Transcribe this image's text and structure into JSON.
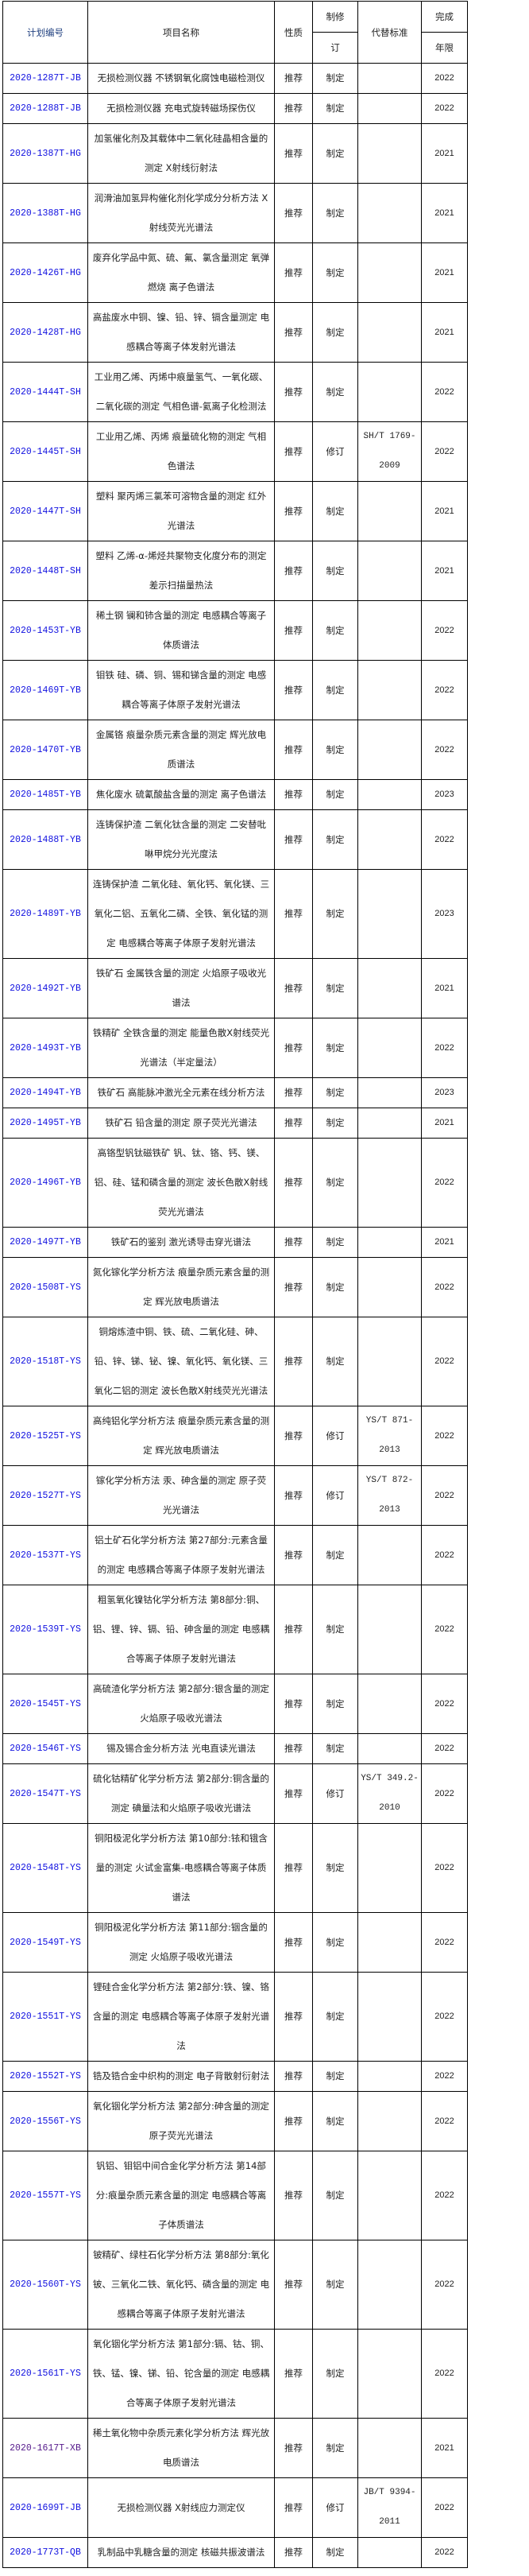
{
  "header": {
    "code": "计划编号",
    "name": "项目名称",
    "nature": "性质",
    "type_top": "制修",
    "type_bottom": "订",
    "replaces": "代替标准",
    "year_top": "完成",
    "year_bottom": "年限"
  },
  "colors": {
    "link": "#1010e0",
    "visited_link": "#551a8b",
    "border": "#000000"
  },
  "rows": [
    {
      "code": "2020-1287T-JB",
      "name": [
        "无损检测仪器 不锈钢氧化腐蚀电磁检测仪"
      ],
      "nature": "推荐",
      "type": "制定",
      "replaces": [],
      "year": "2022"
    },
    {
      "code": "2020-1288T-JB",
      "name": [
        "无损检测仪器 充电式旋转磁场探伤仪"
      ],
      "nature": "推荐",
      "type": "制定",
      "replaces": [],
      "year": "2022"
    },
    {
      "code": "2020-1387T-HG",
      "name": [
        "加氢催化剂及其载体中二氧化硅晶相含量的",
        "测定 X射线衍射法"
      ],
      "nature": "推荐",
      "type": "制定",
      "replaces": [],
      "year": "2021"
    },
    {
      "code": "2020-1388T-HG",
      "name": [
        "润滑油加氢异构催化剂化学成分分析方法 X",
        "射线荧光光谱法"
      ],
      "nature": "推荐",
      "type": "制定",
      "replaces": [],
      "year": "2021"
    },
    {
      "code": "2020-1426T-HG",
      "name": [
        "废弃化学品中氮、硫、氟、氯含量测定 氧弹",
        "燃烧 离子色谱法"
      ],
      "nature": "推荐",
      "type": "制定",
      "replaces": [],
      "year": "2021"
    },
    {
      "code": "2020-1428T-HG",
      "name": [
        "高盐废水中铜、镍、铅、锌、镉含量测定 电",
        "感耦合等离子体发射光谱法"
      ],
      "nature": "推荐",
      "type": "制定",
      "replaces": [],
      "year": "2021"
    },
    {
      "code": "2020-1444T-SH",
      "name": [
        "工业用乙烯、丙烯中痕量氢气、一氧化碳、",
        "二氧化碳的测定 气相色谱-氦离子化检测法"
      ],
      "nature": "推荐",
      "type": "制定",
      "replaces": [],
      "year": "2022"
    },
    {
      "code": "2020-1445T-SH",
      "name": [
        "工业用乙烯、丙烯 痕量硫化物的测定 气相",
        "色谱法"
      ],
      "nature": "推荐",
      "type": "修订",
      "replaces": [
        "SH/T 1769-",
        "2009"
      ],
      "year": "2022"
    },
    {
      "code": "2020-1447T-SH",
      "name": [
        "塑料 聚丙烯三氯苯可溶物含量的测定 红外",
        "光谱法"
      ],
      "nature": "推荐",
      "type": "制定",
      "replaces": [],
      "year": "2021"
    },
    {
      "code": "2020-1448T-SH",
      "name": [
        "塑料 乙烯-α-烯烃共聚物支化度分布的测定",
        "差示扫描量热法"
      ],
      "nature": "推荐",
      "type": "制定",
      "replaces": [],
      "year": "2021"
    },
    {
      "code": "2020-1453T-YB",
      "name": [
        "稀土钢 镧和铈含量的测定 电感耦合等离子",
        "体质谱法"
      ],
      "nature": "推荐",
      "type": "制定",
      "replaces": [],
      "year": "2022"
    },
    {
      "code": "2020-1469T-YB",
      "name": [
        "钼铁 硅、磷、铜、锡和锑含量的测定 电感",
        "耦合等离子体原子发射光谱法"
      ],
      "nature": "推荐",
      "type": "制定",
      "replaces": [],
      "year": "2022"
    },
    {
      "code": "2020-1470T-YB",
      "name": [
        "金属铬 痕量杂质元素含量的测定 辉光放电",
        "质谱法"
      ],
      "nature": "推荐",
      "type": "制定",
      "replaces": [],
      "year": "2022"
    },
    {
      "code": "2020-1485T-YB",
      "name": [
        "焦化废水 硫氰酸盐含量的测定 离子色谱法"
      ],
      "nature": "推荐",
      "type": "制定",
      "replaces": [],
      "year": "2023"
    },
    {
      "code": "2020-1488T-YB",
      "name": [
        "连铸保护渣 二氧化钛含量的测定 二安替吡",
        "啉甲烷分光光度法"
      ],
      "nature": "推荐",
      "type": "制定",
      "replaces": [],
      "year": "2022"
    },
    {
      "code": "2020-1489T-YB",
      "name": [
        "连铸保护渣 二氧化硅、氧化钙、氧化镁、三",
        "氧化二铝、五氧化二磷、全铁、氧化锰的测",
        "定 电感耦合等离子体原子发射光谱法"
      ],
      "nature": "推荐",
      "type": "制定",
      "replaces": [],
      "year": "2023"
    },
    {
      "code": "2020-1492T-YB",
      "name": [
        "铁矿石 金属铁含量的测定 火焰原子吸收光",
        "谱法"
      ],
      "nature": "推荐",
      "type": "制定",
      "replaces": [],
      "year": "2021"
    },
    {
      "code": "2020-1493T-YB",
      "name": [
        "铁精矿 全铁含量的测定 能量色散X射线荧光",
        "光谱法（半定量法）"
      ],
      "nature": "推荐",
      "type": "制定",
      "replaces": [],
      "year": "2022"
    },
    {
      "code": "2020-1494T-YB",
      "name": [
        "铁矿石 高能脉冲激光全元素在线分析方法"
      ],
      "nature": "推荐",
      "type": "制定",
      "replaces": [],
      "year": "2023"
    },
    {
      "code": "2020-1495T-YB",
      "name": [
        "铁矿石 铅含量的测定 原子荧光光谱法"
      ],
      "nature": "推荐",
      "type": "制定",
      "replaces": [],
      "year": "2021"
    },
    {
      "code": "2020-1496T-YB",
      "name": [
        "高铬型钒钛磁铁矿 钒、钛、铬、钙、镁、",
        "铝、硅、锰和磷含量的测定 波长色散X射线",
        "荧光光谱法"
      ],
      "nature": "推荐",
      "type": "制定",
      "replaces": [],
      "year": "2022"
    },
    {
      "code": "2020-1497T-YB",
      "name": [
        "铁矿石的鉴别 激光诱导击穿光谱法"
      ],
      "nature": "推荐",
      "type": "制定",
      "replaces": [],
      "year": "2021"
    },
    {
      "code": "2020-1508T-YS",
      "name": [
        "氮化镓化学分析方法 痕量杂质元素含量的测",
        "定 辉光放电质谱法"
      ],
      "nature": "推荐",
      "type": "制定",
      "replaces": [],
      "year": "2022"
    },
    {
      "code": "2020-1518T-YS",
      "name": [
        "铜熔炼渣中铜、铁、硫、二氧化硅、砷、",
        "铅、锌、锑、铋、镍、氧化钙、氧化镁、三",
        "氧化二铝的测定 波长色散X射线荧光光谱法"
      ],
      "nature": "推荐",
      "type": "制定",
      "replaces": [],
      "year": "2022"
    },
    {
      "code": "2020-1525T-YS",
      "name": [
        "高纯铝化学分析方法 痕量杂质元素含量的测",
        "定 辉光放电质谱法"
      ],
      "nature": "推荐",
      "type": "修订",
      "replaces": [
        "YS/T 871-",
        "2013"
      ],
      "year": "2022"
    },
    {
      "code": "2020-1527T-YS",
      "name": [
        "镓化学分析方法 汞、砷含量的测定 原子荧",
        "光光谱法"
      ],
      "nature": "推荐",
      "type": "修订",
      "replaces": [
        "YS/T 872-",
        "2013"
      ],
      "year": "2022"
    },
    {
      "code": "2020-1537T-YS",
      "name": [
        "铝土矿石化学分析方法 第27部分:元素含量",
        "的测定 电感耦合等离子体原子发射光谱法"
      ],
      "nature": "推荐",
      "type": "制定",
      "replaces": [],
      "year": "2022"
    },
    {
      "code": "2020-1539T-YS",
      "name": [
        "粗氢氧化镍钴化学分析方法 第8部分:铜、",
        "铝、锂、锌、镉、铅、砷含量的测定 电感耦",
        "合等离子体原子发射光谱法"
      ],
      "nature": "推荐",
      "type": "制定",
      "replaces": [],
      "year": "2022"
    },
    {
      "code": "2020-1545T-YS",
      "name": [
        "高硫渣化学分析方法 第2部分:银含量的测定",
        "火焰原子吸收光谱法"
      ],
      "nature": "推荐",
      "type": "制定",
      "replaces": [],
      "year": "2022"
    },
    {
      "code": "2020-1546T-YS",
      "name": [
        "锡及锡合金分析方法 光电直读光谱法"
      ],
      "nature": "推荐",
      "type": "制定",
      "replaces": [],
      "year": "2022"
    },
    {
      "code": "2020-1547T-YS",
      "name": [
        "硫化钴精矿化学分析方法 第2部分:铜含量的",
        "测定 碘量法和火焰原子吸收光谱法"
      ],
      "nature": "推荐",
      "type": "修订",
      "replaces": [
        "YS/T 349.2-",
        "2010"
      ],
      "year": "2022"
    },
    {
      "code": "2020-1548T-YS",
      "name": [
        "铜阳极泥化学分析方法 第10部分:铱和锇含",
        "量的测定 火试金富集-电感耦合等离子体质",
        "谱法"
      ],
      "nature": "推荐",
      "type": "制定",
      "replaces": [],
      "year": "2022"
    },
    {
      "code": "2020-1549T-YS",
      "name": [
        "铜阳极泥化学分析方法 第11部分:铟含量的",
        "测定 火焰原子吸收光谱法"
      ],
      "nature": "推荐",
      "type": "制定",
      "replaces": [],
      "year": "2022"
    },
    {
      "code": "2020-1551T-YS",
      "name": [
        "锂硅合金化学分析方法 第2部分:铁、镍、铬",
        "含量的测定 电感耦合等离子体原子发射光谱",
        "法"
      ],
      "nature": "推荐",
      "type": "制定",
      "replaces": [],
      "year": "2022"
    },
    {
      "code": "2020-1552T-YS",
      "name": [
        "锆及锆合金中织构的测定 电子背散射衍射法"
      ],
      "nature": "推荐",
      "type": "制定",
      "replaces": [],
      "year": "2022"
    },
    {
      "code": "2020-1556T-YS",
      "name": [
        "氧化铟化学分析方法 第2部分:砷含量的测定",
        "原子荧光光谱法"
      ],
      "nature": "推荐",
      "type": "制定",
      "replaces": [],
      "year": "2022"
    },
    {
      "code": "2020-1557T-YS",
      "name": [
        "钒铝、钼铝中间合金化学分析方法 第14部",
        "分:痕量杂质元素含量的测定 电感耦合等离",
        "子体质谱法"
      ],
      "nature": "推荐",
      "type": "制定",
      "replaces": [],
      "year": "2022"
    },
    {
      "code": "2020-1560T-YS",
      "name": [
        "铍精矿、绿柱石化学分析方法 第8部分:氧化",
        "铍、三氧化二铁、氧化钙、磷含量的测定 电",
        "感耦合等离子体原子发射光谱法"
      ],
      "nature": "推荐",
      "type": "制定",
      "replaces": [],
      "year": "2022"
    },
    {
      "code": "2020-1561T-YS",
      "name": [
        "氧化铟化学分析方法 第1部分:镉、钴、铜、",
        "铁、锰、镍、锑、铅、铊含量的测定 电感耦",
        "合等离子体原子发射光谱法"
      ],
      "nature": "推荐",
      "type": "制定",
      "replaces": [],
      "year": "2022"
    },
    {
      "code": "2020-1617T-XB",
      "name": [
        "稀土氧化物中杂质元素化学分析方法 辉光放",
        "电质谱法"
      ],
      "nature": "推荐",
      "type": "制定",
      "replaces": [],
      "year": "2021",
      "visited": true
    },
    {
      "code": "2020-1699T-JB",
      "name": [
        "无损检测仪器 X射线应力测定仪"
      ],
      "nature": "推荐",
      "type": "修订",
      "replaces": [
        "JB/T 9394-",
        "2011"
      ],
      "year": "2022"
    },
    {
      "code": "2020-1773T-QB",
      "name": [
        "乳制品中乳糖含量的测定 核磁共振波谱法"
      ],
      "nature": "推荐",
      "type": "制定",
      "replaces": [],
      "year": "2022"
    }
  ]
}
